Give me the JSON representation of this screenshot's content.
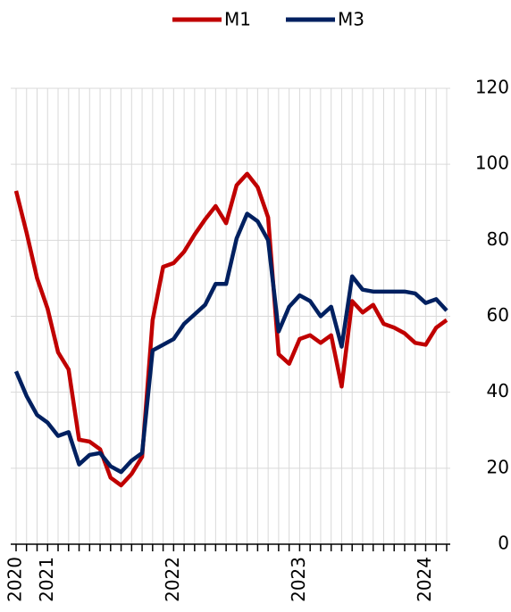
{
  "chart_data": {
    "type": "line",
    "categories": [
      "2020",
      null,
      null,
      "2021",
      null,
      null,
      null,
      null,
      null,
      null,
      null,
      null,
      null,
      null,
      null,
      "2022",
      null,
      null,
      null,
      null,
      null,
      null,
      null,
      null,
      null,
      null,
      null,
      "2023",
      null,
      null,
      null,
      null,
      null,
      null,
      null,
      null,
      null,
      null,
      null,
      "2024",
      null,
      null
    ],
    "series": [
      {
        "name": "M1",
        "color": "#c00000",
        "values": [
          93,
          82,
          70,
          62,
          50.5,
          46,
          27.5,
          27,
          25,
          17.5,
          15.5,
          18.5,
          23,
          59,
          73,
          74,
          77,
          81.5,
          85.5,
          89,
          84.5,
          94.5,
          97.5,
          94,
          86,
          50,
          47.5,
          54,
          55,
          53,
          55,
          41.5,
          64,
          61,
          63,
          58,
          57,
          55.5,
          53,
          52.5,
          57,
          59
        ]
      },
      {
        "name": "M3",
        "color": "#002060",
        "values": [
          45.5,
          39,
          34,
          32,
          28.5,
          29.5,
          21,
          23.5,
          24,
          20.5,
          19,
          22,
          24,
          51,
          52.5,
          54,
          58,
          60.5,
          63,
          68.5,
          68.5,
          80.5,
          87,
          85,
          80,
          56,
          62.5,
          65.5,
          64,
          60,
          62.5,
          52,
          70.5,
          67,
          66.5,
          66.5,
          66.5,
          66.5,
          66,
          63.5,
          64.5,
          61.5
        ]
      }
    ],
    "ylim": [
      0,
      120
    ],
    "yticks": [
      0,
      20,
      40,
      60,
      80,
      100,
      120
    ],
    "grid": true,
    "legend": "top"
  }
}
